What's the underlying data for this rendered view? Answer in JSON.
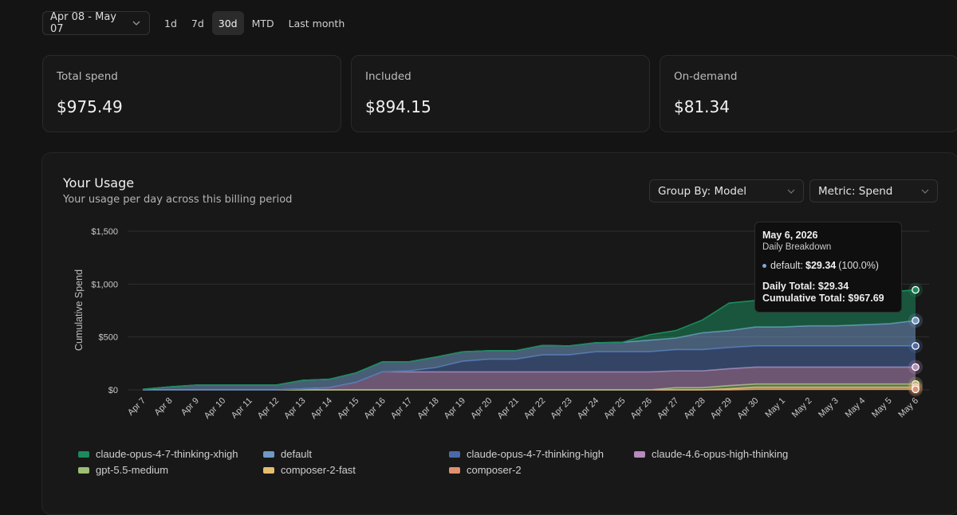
{
  "range": {
    "label": "Apr 08 - May 07"
  },
  "presets": [
    {
      "label": "1d"
    },
    {
      "label": "7d"
    },
    {
      "label": "30d"
    },
    {
      "label": "MTD"
    },
    {
      "label": "Last month"
    }
  ],
  "active_preset": "30d",
  "cards": [
    {
      "label": "Total spend",
      "value": "$975.49"
    },
    {
      "label": "Included",
      "value": "$894.15"
    },
    {
      "label": "On-demand",
      "value": "$81.34"
    }
  ],
  "usage": {
    "title": "Your Usage",
    "subtitle": "Your usage per day across this billing period",
    "group_by": "Group By: Model",
    "metric": "Metric: Spend"
  },
  "tooltip": {
    "date": "May 6, 2026",
    "subtitle": "Daily Breakdown",
    "row_label": "default:",
    "row_value": "$29.34",
    "row_pct": "(100.0%)",
    "daily_total": "Daily Total: $29.34",
    "cumulative_total": "Cumulative Total: $967.69"
  },
  "colors": {
    "claude-opus-4-7-thinking-xhigh": "#1c8a5c",
    "default": "#6f99c4",
    "claude-opus-4-7-thinking-high": "#4a6aa6",
    "claude-4.6-opus-high-thinking": "#b48bbb",
    "gpt-5.5-medium": "#9cbf73",
    "composer-2-fast": "#e6bd6f",
    "composer-2": "#e0906f"
  },
  "chart_data": {
    "type": "area",
    "ylabel": "Cumulative Spend",
    "ylim": [
      0,
      1500
    ],
    "yticks": [
      "$0",
      "$500",
      "$1,000",
      "$1,500"
    ],
    "ytick_values": [
      0,
      500,
      1000,
      1500
    ],
    "grid": true,
    "legend_position": "bottom",
    "x": [
      "Apr 7",
      "Apr 8",
      "Apr 9",
      "Apr 10",
      "Apr 11",
      "Apr 12",
      "Apr 13",
      "Apr 14",
      "Apr 15",
      "Apr 16",
      "Apr 17",
      "Apr 18",
      "Apr 19",
      "Apr 20",
      "Apr 21",
      "Apr 22",
      "Apr 23",
      "Apr 24",
      "Apr 25",
      "Apr 26",
      "Apr 27",
      "Apr 28",
      "Apr 29",
      "Apr 30",
      "May 1",
      "May 2",
      "May 3",
      "May 4",
      "May 5",
      "May 6"
    ],
    "series": [
      {
        "name": "claude-opus-4-7-thinking-xhigh",
        "values": [
          0,
          0,
          0,
          0,
          0,
          0,
          0,
          0,
          0,
          0,
          0,
          0,
          0,
          0,
          0,
          0,
          0,
          0,
          0,
          50,
          70,
          120,
          260,
          250,
          280,
          290,
          290,
          290,
          300,
          290
        ]
      },
      {
        "name": "default",
        "values": [
          5,
          28,
          45,
          45,
          45,
          45,
          80,
          80,
          90,
          95,
          85,
          100,
          90,
          80,
          80,
          90,
          85,
          85,
          90,
          110,
          110,
          160,
          160,
          180,
          180,
          190,
          190,
          200,
          210,
          240
        ]
      },
      {
        "name": "claude-opus-4-7-thinking-high",
        "values": [
          0,
          0,
          0,
          0,
          0,
          0,
          0,
          0,
          0,
          0,
          10,
          40,
          100,
          120,
          120,
          160,
          160,
          190,
          190,
          190,
          200,
          200,
          200,
          200,
          200,
          200,
          200,
          200,
          200,
          200
        ]
      },
      {
        "name": "claude-4.6-opus-high-thinking",
        "values": [
          0,
          0,
          0,
          0,
          0,
          0,
          10,
          20,
          70,
          170,
          170,
          170,
          170,
          170,
          170,
          170,
          170,
          170,
          170,
          170,
          160,
          160,
          160,
          160,
          160,
          160,
          160,
          160,
          160,
          160
        ]
      },
      {
        "name": "gpt-5.5-medium",
        "values": [
          0,
          0,
          0,
          0,
          0,
          0,
          0,
          0,
          0,
          0,
          0,
          0,
          0,
          0,
          0,
          0,
          0,
          0,
          0,
          0,
          20,
          20,
          30,
          30,
          30,
          30,
          30,
          30,
          30,
          30
        ]
      },
      {
        "name": "composer-2-fast",
        "values": [
          0,
          0,
          0,
          0,
          0,
          0,
          0,
          0,
          0,
          0,
          0,
          0,
          0,
          0,
          0,
          0,
          0,
          0,
          0,
          0,
          0,
          0,
          10,
          20,
          20,
          20,
          20,
          20,
          20,
          20
        ]
      },
      {
        "name": "composer-2",
        "values": [
          0,
          0,
          0,
          0,
          0,
          0,
          0,
          0,
          0,
          0,
          0,
          0,
          0,
          0,
          0,
          0,
          0,
          0,
          0,
          0,
          0,
          0,
          0,
          5,
          5,
          5,
          5,
          5,
          5,
          5
        ]
      }
    ]
  }
}
